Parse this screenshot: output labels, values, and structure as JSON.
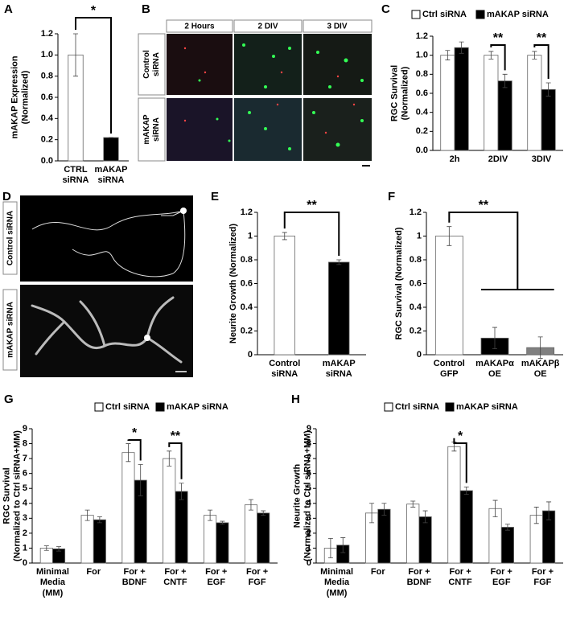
{
  "chart_data": [
    {
      "type": "bar",
      "label": "A",
      "ylabel": "mAKAP Expression\n(Normalized)",
      "categories": [
        "CTRL\nsiRNA",
        "mAKAP\nsiRNA"
      ],
      "values": [
        1.0,
        0.22
      ],
      "errors": [
        0.2,
        0
      ],
      "colors": [
        "#ffffff",
        "#000000"
      ],
      "ylim": [
        0,
        1.2
      ],
      "yticks": [
        {
          "value": 0,
          "label": "0.0"
        },
        {
          "value": 0.2,
          "label": "0.2"
        },
        {
          "value": 0.4,
          "label": "0.4"
        },
        {
          "value": 0.6,
          "label": "0.6"
        },
        {
          "value": 0.8,
          "label": "0.8"
        },
        {
          "value": 1.0,
          "label": "1.0"
        },
        {
          "value": 1.2,
          "label": "1.2"
        }
      ],
      "annotations": [
        "*"
      ]
    },
    {
      "type": "bar",
      "label": "C",
      "ylabel": "RGC Survival\n(Normalized)",
      "categories": [
        "2h",
        "2DIV",
        "3DIV"
      ],
      "series": [
        {
          "name": "Ctrl siRNA",
          "color": "#ffffff",
          "values": [
            1.0,
            1.0,
            1.0
          ],
          "errors": [
            0.05,
            0.04,
            0.04
          ]
        },
        {
          "name": "mAKAP siRNA",
          "color": "#000000",
          "values": [
            1.08,
            0.73,
            0.64
          ],
          "errors": [
            0.06,
            0.07,
            0.07
          ]
        }
      ],
      "ylim": [
        0,
        1.2
      ],
      "yticks": [
        {
          "value": 0,
          "label": "0.0"
        },
        {
          "value": 0.2,
          "label": "0.2"
        },
        {
          "value": 0.4,
          "label": "0.4"
        },
        {
          "value": 0.6,
          "label": "0.6"
        },
        {
          "value": 0.8,
          "label": "0.8"
        },
        {
          "value": 1.0,
          "label": "1.0"
        },
        {
          "value": 1.2,
          "label": "1.2"
        }
      ],
      "annotations": [
        "**",
        "**"
      ]
    },
    {
      "type": "bar",
      "label": "E",
      "ylabel": "Neurite Growth (Normalized)",
      "categories": [
        "Control\nsiRNA",
        "mAKAP\nsiRNA"
      ],
      "values": [
        1.0,
        0.78
      ],
      "errors": [
        0.03,
        0.02
      ],
      "colors": [
        "#ffffff",
        "#000000"
      ],
      "ylim": [
        0,
        1.2
      ],
      "yticks": [
        0,
        0.2,
        0.4,
        0.6,
        0.8,
        1,
        1.2
      ],
      "annotations": [
        "**"
      ]
    },
    {
      "type": "bar",
      "label": "F",
      "ylabel": "RGC Survival (Normalized)",
      "categories": [
        "Control\nGFP",
        "mAKAPα\nOE",
        "mAKAPβ\nOE"
      ],
      "values": [
        1.0,
        0.14,
        0.06
      ],
      "errors": [
        0.08,
        0.09,
        0.09
      ],
      "colors": [
        "#ffffff",
        "#000000",
        "#808080"
      ],
      "ylim": [
        0,
        1.2
      ],
      "yticks": [
        0,
        0.2,
        0.4,
        0.6,
        0.8,
        1,
        1.2
      ],
      "annotations": [
        "**"
      ]
    },
    {
      "type": "bar",
      "label": "G",
      "ylabel": "RGC Survival\n(Normalized to Ctrl siRNA+MM)",
      "categories": [
        "Minimal\nMedia\n(MM)",
        "For",
        "For +\nBDNF",
        "For +\nCNTF",
        "For +\nEGF",
        "For +\nFGF"
      ],
      "series": [
        {
          "name": "Ctrl siRNA",
          "color": "#ffffff",
          "values": [
            1.0,
            3.2,
            7.4,
            7.0,
            3.2,
            3.9
          ],
          "errors": [
            0.15,
            0.35,
            0.6,
            0.5,
            0.35,
            0.35
          ]
        },
        {
          "name": "mAKAP siRNA",
          "color": "#000000",
          "values": [
            0.95,
            2.9,
            5.55,
            4.8,
            2.7,
            3.35
          ],
          "errors": [
            0.15,
            0.2,
            1.05,
            0.55,
            0.1,
            0.15
          ]
        }
      ],
      "ylim": [
        0,
        9
      ],
      "yticks": [
        0,
        1,
        2,
        3,
        4,
        5,
        6,
        7,
        8,
        9
      ],
      "annotations": [
        "*",
        "**"
      ]
    },
    {
      "type": "bar",
      "label": "H",
      "ylabel": "Neurite Growth\n(Normalized to Ctrl siRNA+MM)",
      "categories": [
        "Minimal\nMedia\n(MM)",
        "For",
        "For +\nBDNF",
        "For +\nCNTF",
        "For +\nEGF",
        "For +\nFGF"
      ],
      "series": [
        {
          "name": "Ctrl siRNA",
          "color": "#ffffff",
          "values": [
            1.0,
            3.35,
            3.95,
            7.8,
            3.65,
            3.2
          ],
          "errors": [
            0.65,
            0.65,
            0.2,
            0.3,
            0.55,
            0.55
          ]
        },
        {
          "name": "mAKAP siRNA",
          "color": "#000000",
          "values": [
            1.2,
            3.6,
            3.1,
            4.85,
            2.4,
            3.5
          ],
          "errors": [
            0.5,
            0.4,
            0.4,
            0.25,
            0.2,
            0.6
          ]
        }
      ],
      "ylim": [
        0,
        9
      ],
      "yticks": [
        0,
        1,
        2,
        3,
        4,
        5,
        6,
        7,
        8,
        9
      ],
      "annotations": [
        "*"
      ]
    }
  ],
  "image_panels": [
    {
      "label": "B",
      "column_headers": [
        "2 Hours",
        "2 DIV",
        "3 DIV"
      ],
      "row_labels": [
        "Control\nsiRNA",
        "mAKAP\nsiRNA"
      ]
    },
    {
      "label": "D",
      "row_labels": [
        "Control siRNA",
        "mAKAP siRNA"
      ]
    }
  ]
}
